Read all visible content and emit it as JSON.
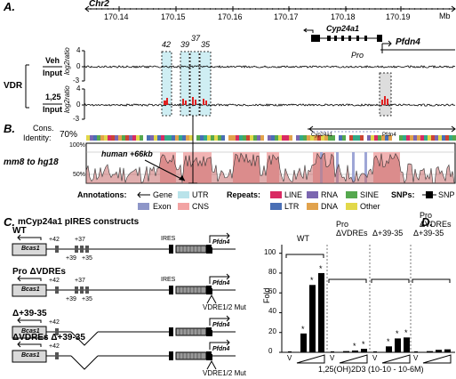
{
  "panelA": {
    "label": "A.",
    "chrom": "Chr2",
    "ticks": [
      "170.14",
      "170.15",
      "170.16",
      "170.17",
      "170.18",
      "170.19"
    ],
    "unit": "Mb",
    "gene1": "Cyp24a1",
    "gene2": "Pfdn4",
    "pro": "Pro",
    "peaks": [
      "42",
      "39",
      "37",
      "35"
    ],
    "vdr": "VDR",
    "row1_num": "Veh",
    "row1_den": "Input",
    "row2_num": "1,25",
    "row2_den": "Input",
    "ylabel": "log2ratio",
    "yticks_top": [
      "4",
      "0",
      "-3"
    ],
    "yticks_bot": [
      "4",
      "0",
      "-3"
    ]
  },
  "panelB": {
    "label": "B.",
    "cons_label": "Cons.",
    "identity_label": "Identity:",
    "identity_value": "70%",
    "gene1": "Cyp24a1",
    "gene2": "Pfdn4",
    "species": "mm8 to hg18",
    "pct100": "100%",
    "pct50": "50%",
    "human_label": "human +66kb",
    "annotations_title": "Annotations:",
    "repeats_title": "Repeats:",
    "snps_title": "SNPs:",
    "legend": {
      "gene": "Gene",
      "exon": "Exon",
      "utr": "UTR",
      "cns": "CNS",
      "line": "LINE",
      "ltr": "LTR",
      "rna": "RNA",
      "dna": "DNA",
      "sine": "SINE",
      "other": "Other",
      "snp": "SNP"
    },
    "colors": {
      "exon": "#8e96c8",
      "utr": "#b9e3ea",
      "cns": "#f2a3a3",
      "line": "#d92a63",
      "ltr": "#4a6fb5",
      "rna": "#7b66b0",
      "dna": "#e1a24c",
      "sine": "#55a84e",
      "other": "#e2d84a"
    }
  },
  "panelC": {
    "label": "C.",
    "title": "mCyp24a1 pIRES constructs",
    "constructs": [
      "WT",
      "Pro ΔVDREs",
      "Δ+39-35",
      "ΔVDREs Δ+39-35"
    ],
    "bcas1": "Bcas1",
    "pfdn4": "Pfdn4",
    "ires": "IRES",
    "p42": "+42",
    "p37": "+37",
    "p39": "+39",
    "p35": "+35",
    "vdre_mut": "VDRE1/2 Mut"
  },
  "panelD": {
    "label": "D.",
    "ylabel": "Fold",
    "yticks": [
      "0",
      "20",
      "40",
      "60",
      "80",
      "100"
    ],
    "groups": [
      "WT",
      "Pro ΔVDREs",
      "Δ+39-35",
      "Pro ΔVDREs Δ+39-35"
    ],
    "group_label_lines": [
      [
        "WT"
      ],
      [
        "Pro",
        "ΔVDREs"
      ],
      [
        "Δ+39-35"
      ],
      [
        "Pro",
        "ΔVDREs",
        "Δ+39-35"
      ]
    ],
    "vlabel": "V",
    "xlabel": "1,25(OH)2D3 (10-10 - 10-6M)",
    "star": "*"
  },
  "chart_data": {
    "type": "bar",
    "ylabel": "Fold",
    "ylim": [
      0,
      100
    ],
    "categories": [
      "V",
      "10-10",
      "10-8",
      "10-6"
    ],
    "series": [
      {
        "name": "WT",
        "values": [
          1,
          19,
          68,
          80
        ],
        "stars": [
          false,
          true,
          true,
          true
        ]
      },
      {
        "name": "Pro ΔVDREs",
        "values": [
          1,
          1.2,
          1.8,
          3.5
        ],
        "stars": [
          false,
          false,
          true,
          true
        ]
      },
      {
        "name": "Δ+39-35",
        "values": [
          1,
          6,
          14,
          15
        ],
        "stars": [
          false,
          true,
          true,
          true
        ]
      },
      {
        "name": "Pro ΔVDREs Δ+39-35",
        "values": [
          1,
          1.2,
          2.5,
          3
        ],
        "stars": [
          false,
          false,
          false,
          false
        ]
      }
    ]
  }
}
